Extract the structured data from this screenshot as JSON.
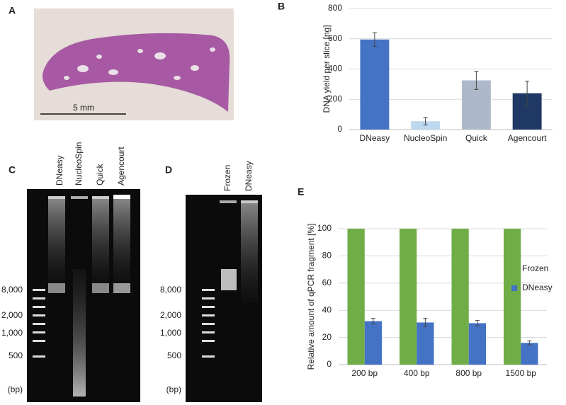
{
  "panel_labels": [
    "A",
    "B",
    "C",
    "D",
    "E"
  ],
  "histology": {
    "scale_bar": "5 mm"
  },
  "gels": [
    {
      "lanes": [
        "DNeasy",
        "NucleoSpin",
        "Quick",
        "Agencourt"
      ],
      "ladder": [
        "8,000",
        "2,000",
        "1,000",
        "500"
      ],
      "unit": "(bp)"
    },
    {
      "lanes": [
        "Frozen",
        "DNeasy"
      ],
      "ladder": [
        "8,000",
        "2,000",
        "1,000",
        "500"
      ],
      "unit": "(bp)"
    }
  ],
  "chart_data": [
    {
      "type": "bar",
      "y_label": "DNA yield per slice [ng]",
      "categories": [
        "DNeasy",
        "NucleoSpin",
        "Quick",
        "Agencourt"
      ],
      "values": [
        595,
        55,
        325,
        240
      ],
      "errors": [
        45,
        25,
        60,
        80
      ],
      "colors": [
        "#4472c4",
        "#bdd7ee",
        "#adb9ca",
        "#1f3864"
      ],
      "ylim": [
        0,
        800
      ],
      "yticks": [
        0,
        200,
        400,
        600,
        800
      ],
      "grid": true
    },
    {
      "type": "bar",
      "y_label": "Relative amount of qPCR fragment  [%]",
      "categories": [
        "200 bp",
        "400 bp",
        "800 bp",
        "1500 bp"
      ],
      "series": [
        {
          "name": "Frozen",
          "color": "#70ad47",
          "values": [
            100,
            100,
            100,
            100
          ]
        },
        {
          "name": "DNeasy",
          "color": "#4472c4",
          "values": [
            32,
            31,
            30.5,
            16
          ],
          "errors": [
            2,
            3,
            2,
            1.5
          ]
        }
      ],
      "ylim": [
        0,
        100
      ],
      "yticks": [
        0,
        20,
        40,
        60,
        80,
        100
      ],
      "grid": true,
      "legend": "right"
    }
  ]
}
